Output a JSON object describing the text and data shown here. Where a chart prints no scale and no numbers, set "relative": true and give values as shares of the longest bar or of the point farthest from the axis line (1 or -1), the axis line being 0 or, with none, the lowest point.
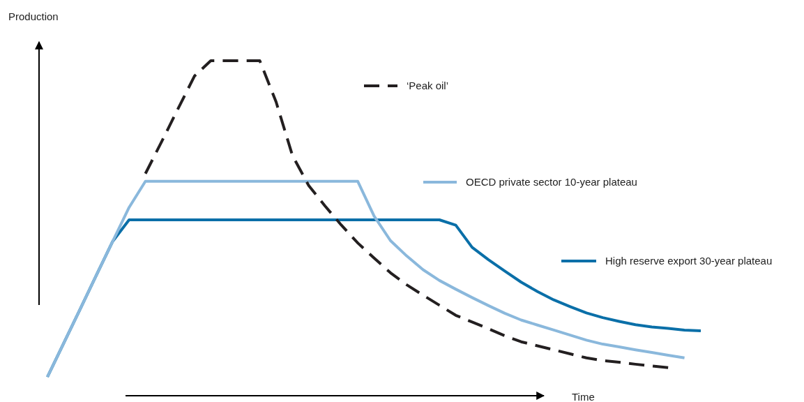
{
  "chart_data": {
    "type": "line",
    "relative": true,
    "xlabel": "Time",
    "ylabel": "Production",
    "legend": "right",
    "categories": [
      null,
      null,
      null,
      null,
      null,
      null,
      null,
      null,
      null,
      null,
      null,
      null,
      null,
      null,
      null,
      null,
      null,
      null,
      null,
      null,
      null,
      null,
      null,
      null,
      null,
      null,
      null,
      null,
      null,
      null,
      null,
      null,
      null,
      null,
      null,
      null,
      null,
      null,
      null,
      null,
      null
    ],
    "series": [
      {
        "name": "‘Peak oil’",
        "color": "#231f20",
        "line_style": "dashed",
        "values": [
          null,
          null,
          null,
          null,
          null,
          null,
          0.663,
          0.759,
          0.857,
          0.954,
          1,
          1,
          1,
          1,
          0.877,
          0.717,
          0.627,
          0.566,
          0.509,
          0.456,
          0.411,
          0.367,
          0.331,
          0.3,
          0.27,
          0.24,
          0.22,
          0.2,
          0.179,
          0.161,
          0.149,
          0.137,
          0.125,
          0.113,
          0.105,
          0.1,
          0.094,
          0.089,
          0.084,
          null,
          null
        ]
      },
      {
        "name": "OECD private sector 10-year plateau",
        "color": "#8ab8dc",
        "line_style": "solid",
        "values": [
          0.056,
          0.157,
          0.258,
          0.36,
          0.461,
          0.562,
          0.64,
          0.64,
          0.64,
          0.64,
          0.64,
          0.64,
          0.64,
          0.64,
          0.64,
          0.64,
          0.64,
          0.64,
          0.64,
          0.64,
          0.536,
          0.463,
          0.417,
          0.376,
          0.344,
          0.318,
          0.293,
          0.269,
          0.246,
          0.226,
          0.211,
          0.196,
          0.181,
          0.166,
          0.154,
          0.146,
          0.137,
          0.129,
          0.121,
          0.113,
          null
        ]
      },
      {
        "name": "High reserve export 30-year plateau",
        "color": "#0a6fa8",
        "line_style": "solid",
        "values": [
          0.056,
          0.157,
          0.258,
          0.36,
          0.461,
          0.525,
          0.525,
          0.525,
          0.525,
          0.525,
          0.525,
          0.525,
          0.525,
          0.525,
          0.525,
          0.525,
          0.525,
          0.525,
          0.525,
          0.525,
          0.525,
          0.525,
          0.525,
          0.525,
          0.525,
          0.509,
          0.443,
          0.406,
          0.372,
          0.339,
          0.311,
          0.286,
          0.266,
          0.247,
          0.233,
          0.222,
          0.212,
          0.205,
          0.201,
          0.196,
          0.194
        ]
      }
    ]
  }
}
